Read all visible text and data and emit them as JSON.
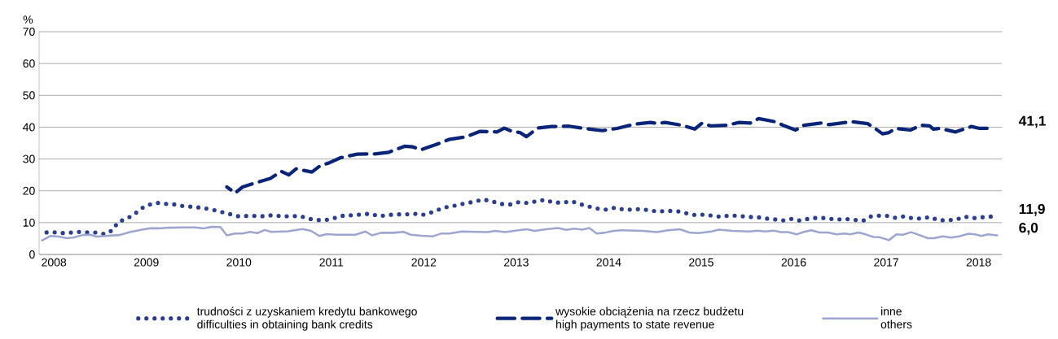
{
  "chart_data": {
    "type": "line",
    "ylabel": "%",
    "xlim": [
      2007.84,
      2018.25
    ],
    "ylim": [
      0,
      70
    ],
    "xticks": [
      2008,
      2009,
      2010,
      2011,
      2012,
      2013,
      2014,
      2015,
      2016,
      2017,
      2018
    ],
    "yticks": [
      0,
      10,
      20,
      30,
      40,
      50,
      60,
      70
    ],
    "grid": "y",
    "legend": "bottom",
    "annotations": [
      "41,1",
      "11,9",
      "6,0"
    ],
    "series": [
      {
        "name": "trudności z uzyskaniem kredytu bankowego\ndifficulties in obtaining bank credits",
        "color": "#2d3f8c",
        "line_style": "dotted",
        "x": [
          2007.87,
          2007.97,
          2008.07,
          2008.16,
          2008.26,
          2008.36,
          2008.46,
          2008.55,
          2008.64,
          2008.69,
          2008.78,
          2008.86,
          2008.94,
          2009.02,
          2009.12,
          2009.21,
          2009.31,
          2009.41,
          2009.51,
          2009.6,
          2009.7,
          2009.79,
          2009.89,
          2009.98,
          2010.08,
          2010.17,
          2010.27,
          2010.37,
          2010.46,
          2010.56,
          2010.66,
          2010.76,
          2010.85,
          2010.95,
          2011.04,
          2011.14,
          2011.23,
          2011.33,
          2011.42,
          2011.52,
          2011.61,
          2011.71,
          2011.81,
          2011.9,
          2011.98,
          2012.08,
          2012.17,
          2012.26,
          2012.35,
          2012.45,
          2012.55,
          2012.64,
          2012.74,
          2012.83,
          2012.93,
          2013.02,
          2013.12,
          2013.22,
          2013.31,
          2013.4,
          2013.5,
          2013.6,
          2013.69,
          2013.78,
          2013.88,
          2013.97,
          2014.07,
          2014.16,
          2014.26,
          2014.35,
          2014.45,
          2014.54,
          2014.64,
          2014.74,
          2014.83,
          2014.93,
          2015.02,
          2015.12,
          2015.22,
          2015.31,
          2015.41,
          2015.51,
          2015.61,
          2015.7,
          2015.8,
          2015.89,
          2015.98,
          2016.07,
          2016.17,
          2016.26,
          2016.36,
          2016.46,
          2016.55,
          2016.65,
          2016.75,
          2016.83,
          2016.91,
          2017.01,
          2017.1,
          2017.2,
          2017.29,
          2017.39,
          2017.47,
          2017.57,
          2017.66,
          2017.75,
          2017.85,
          2017.94,
          2018.04,
          2018.13
        ],
        "values": [
          6.7,
          7.1,
          6.7,
          6.8,
          7.1,
          6.9,
          6.9,
          6.4,
          7.7,
          10.1,
          11.2,
          12.4,
          14.4,
          15.6,
          16.2,
          15.9,
          15.7,
          15.1,
          15.0,
          14.6,
          14.2,
          13.5,
          12.8,
          12.0,
          12.1,
          12.1,
          12.0,
          12.4,
          12.0,
          12.0,
          12.1,
          11.2,
          10.8,
          10.9,
          11.5,
          12.3,
          12.3,
          12.6,
          12.8,
          12.0,
          12.4,
          12.6,
          12.6,
          12.8,
          12.4,
          13.2,
          14.2,
          15.0,
          15.4,
          16.1,
          16.6,
          17.3,
          16.7,
          15.9,
          15.7,
          16.4,
          16.2,
          16.7,
          17.2,
          16.3,
          16.3,
          16.7,
          15.8,
          15.1,
          14.4,
          14.1,
          14.7,
          14.1,
          14.1,
          14.3,
          13.8,
          13.5,
          13.7,
          13.6,
          13.0,
          12.4,
          12.5,
          12.2,
          11.8,
          12.3,
          12.1,
          11.8,
          11.7,
          11.3,
          11.0,
          10.7,
          11.2,
          10.6,
          11.3,
          11.5,
          11.4,
          10.9,
          11.2,
          10.9,
          10.6,
          11.9,
          12.2,
          12.1,
          11.5,
          12.0,
          11.3,
          11.3,
          11.8,
          10.7,
          10.8,
          10.9,
          11.9,
          11.4,
          11.7,
          11.9
        ]
      },
      {
        "name": "wysokie obciążenia na rzecz budżetu\nhigh payments to state revenue",
        "color": "#0a2577",
        "line_style": "dashed",
        "x": [
          2009.87,
          2009.96,
          2010.04,
          2010.16,
          2010.34,
          2010.46,
          2010.54,
          2010.62,
          2010.79,
          2010.88,
          2010.97,
          2011.1,
          2011.28,
          2011.47,
          2011.62,
          2011.79,
          2011.88,
          2011.97,
          2012.12,
          2012.28,
          2012.45,
          2012.61,
          2012.79,
          2012.87,
          2012.96,
          2013.04,
          2013.11,
          2013.23,
          2013.38,
          2013.57,
          2013.76,
          2013.93,
          2014.09,
          2014.27,
          2014.45,
          2014.53,
          2014.61,
          2014.79,
          2014.93,
          2015.01,
          2015.1,
          2015.28,
          2015.41,
          2015.53,
          2015.62,
          2015.8,
          2015.9,
          2016.02,
          2016.11,
          2016.3,
          2016.38,
          2016.63,
          2016.8,
          2016.88,
          2016.96,
          2017.03,
          2017.1,
          2017.26,
          2017.38,
          2017.47,
          2017.51,
          2017.58,
          2017.75,
          2017.92,
          2018.01,
          2018.09
        ],
        "values": [
          21.2,
          19.3,
          21.2,
          22.3,
          23.9,
          26.1,
          25.0,
          26.9,
          25.9,
          27.9,
          28.7,
          30.4,
          31.5,
          31.6,
          32.1,
          34.0,
          33.8,
          32.9,
          34.4,
          36.2,
          36.9,
          38.7,
          38.5,
          39.7,
          38.6,
          38.3,
          37.0,
          39.7,
          40.2,
          40.3,
          39.5,
          38.9,
          39.6,
          40.9,
          41.5,
          41.1,
          41.5,
          40.6,
          39.4,
          41.3,
          40.4,
          40.6,
          41.5,
          41.3,
          42.7,
          41.7,
          40.4,
          39.1,
          40.6,
          41.3,
          40.8,
          41.7,
          41.1,
          39.6,
          37.9,
          38.3,
          39.6,
          39.1,
          40.6,
          40.4,
          39.4,
          39.6,
          38.5,
          40.2,
          39.6,
          39.6
        ]
      },
      {
        "name": "inne\nothers",
        "color": "#9ea6cf",
        "line_style": "solid",
        "x": [
          2007.87,
          2007.96,
          2008.05,
          2008.14,
          2008.21,
          2008.31,
          2008.39,
          2008.46,
          2008.55,
          2008.71,
          2008.83,
          2008.94,
          2009.03,
          2009.14,
          2009.24,
          2009.41,
          2009.53,
          2009.62,
          2009.71,
          2009.8,
          2009.87,
          2009.96,
          2010.04,
          2010.12,
          2010.2,
          2010.28,
          2010.35,
          2010.53,
          2010.69,
          2010.78,
          2010.87,
          2010.95,
          2011.06,
          2011.26,
          2011.37,
          2011.44,
          2011.54,
          2011.67,
          2011.78,
          2011.86,
          2011.97,
          2012.1,
          2012.19,
          2012.28,
          2012.41,
          2012.58,
          2012.69,
          2012.77,
          2012.88,
          2012.99,
          2013.11,
          2013.2,
          2013.32,
          2013.45,
          2013.54,
          2013.63,
          2013.71,
          2013.79,
          2013.87,
          2013.95,
          2014.05,
          2014.14,
          2014.37,
          2014.52,
          2014.64,
          2014.77,
          2014.87,
          2014.97,
          2015.11,
          2015.19,
          2015.34,
          2015.52,
          2015.61,
          2015.69,
          2015.78,
          2015.86,
          2015.94,
          2016.03,
          2016.11,
          2016.19,
          2016.28,
          2016.37,
          2016.46,
          2016.55,
          2016.61,
          2016.7,
          2016.78,
          2016.86,
          2016.93,
          2017.03,
          2017.11,
          2017.18,
          2017.27,
          2017.36,
          2017.45,
          2017.52,
          2017.61,
          2017.7,
          2017.79,
          2017.89,
          2017.96,
          2018.03,
          2018.1,
          2018.2
        ],
        "values": [
          4.4,
          5.8,
          5.6,
          5.1,
          5.3,
          6.1,
          6.2,
          5.6,
          5.8,
          6.1,
          7.1,
          7.7,
          8.2,
          8.2,
          8.4,
          8.5,
          8.5,
          8.2,
          8.7,
          8.6,
          6.0,
          6.6,
          6.6,
          7.1,
          6.7,
          7.7,
          7.1,
          7.3,
          8.0,
          7.4,
          5.8,
          6.4,
          6.2,
          6.2,
          7.2,
          6.0,
          6.8,
          6.8,
          7.1,
          6.2,
          5.9,
          5.7,
          6.6,
          6.6,
          7.2,
          7.1,
          7.0,
          7.4,
          7.0,
          7.5,
          7.9,
          7.4,
          7.9,
          8.3,
          7.7,
          8.1,
          7.8,
          8.3,
          6.6,
          6.8,
          7.4,
          7.6,
          7.4,
          7.0,
          7.6,
          7.9,
          6.9,
          6.7,
          7.2,
          7.8,
          7.4,
          7.2,
          7.5,
          7.2,
          7.5,
          7.0,
          7.0,
          6.3,
          7.1,
          7.6,
          6.9,
          6.9,
          6.3,
          6.6,
          6.3,
          6.9,
          6.3,
          5.5,
          5.4,
          4.5,
          6.3,
          6.2,
          7.0,
          6.1,
          5.1,
          5.1,
          5.7,
          5.3,
          5.7,
          6.5,
          6.3,
          5.8,
          6.3,
          6.0
        ]
      }
    ]
  }
}
